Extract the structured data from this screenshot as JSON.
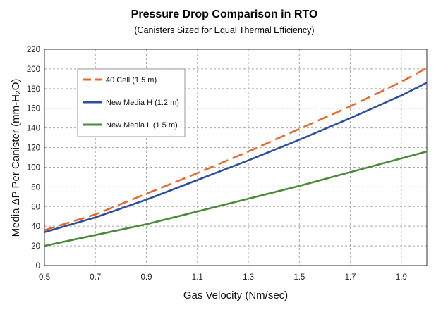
{
  "chart_data": {
    "type": "line",
    "title": "Pressure Drop Comparison in RTO",
    "subtitle": "(Canisters Sized for Equal Thermal Efficiency)",
    "xlabel": "Gas Velocity (Nm/sec)",
    "ylabel": "Media ΔP Per Canister (mm-H₂O)",
    "xlim": [
      0.5,
      2.0
    ],
    "ylim": [
      0,
      220
    ],
    "x_ticks": [
      "0.5",
      "0.7",
      "0.9",
      "1.1",
      "1.3",
      "1.5",
      "1.7",
      "1.9"
    ],
    "y_ticks": [
      "0",
      "20",
      "40",
      "60",
      "80",
      "100",
      "120",
      "140",
      "160",
      "180",
      "200",
      "220"
    ],
    "grid": true,
    "legend_position": "top-left",
    "series": [
      {
        "name": "40 Cell (1.5 m)",
        "color": "#e8692b",
        "style": "dashed",
        "x": [
          0.5,
          0.7,
          0.9,
          1.1,
          1.3,
          1.5,
          1.7,
          1.9,
          2.0
        ],
        "y": [
          36,
          52,
          73,
          94,
          116,
          139,
          162,
          187,
          201
        ]
      },
      {
        "name": "New Media H (1.2 m)",
        "color": "#2e4f9e",
        "style": "solid",
        "x": [
          0.5,
          0.7,
          0.9,
          1.1,
          1.3,
          1.5,
          1.7,
          1.9,
          2.0
        ],
        "y": [
          34,
          49,
          67,
          87,
          107,
          128,
          150,
          173,
          186
        ]
      },
      {
        "name": "New Media L (1.5 m)",
        "color": "#4a8a3a",
        "style": "solid",
        "x": [
          0.5,
          0.7,
          0.9,
          1.1,
          1.3,
          1.5,
          1.7,
          1.9,
          2.0
        ],
        "y": [
          20,
          31,
          42,
          55,
          68,
          81,
          95,
          109,
          116
        ]
      }
    ]
  }
}
